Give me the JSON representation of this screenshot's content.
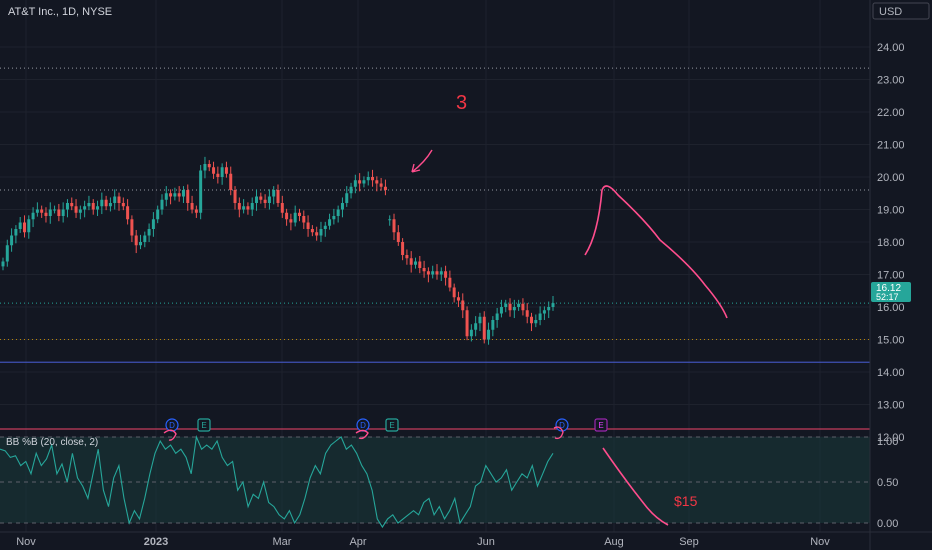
{
  "header": {
    "symbol_title": "AT&T Inc., 1D, NYSE",
    "currency_button": "USD"
  },
  "price_badge": {
    "price": "16.12",
    "countdown": "52:17"
  },
  "indicator": {
    "label": "BB %B (20, close, 2)"
  },
  "annotations": {
    "number": "3",
    "target": "$15"
  },
  "colors": {
    "background": "#131722",
    "up": "#26a69a",
    "down": "#ef5350",
    "drawing": "#ff4d8d",
    "support_line": "#3f51b5",
    "bb_line": "#26a69a",
    "bb_band": "#1b3b3b"
  },
  "chart_data": [
    {
      "type": "candlestick",
      "title": "AT&T Inc., 1D, NYSE",
      "x_tick_labels": [
        "Nov",
        "2023",
        "Mar",
        "Apr",
        "Jun",
        "Aug",
        "Sep",
        "Nov"
      ],
      "y_tick_labels": [
        "12.00",
        "13.00",
        "14.00",
        "15.00",
        "16.00",
        "17.00",
        "18.00",
        "19.00",
        "20.00",
        "21.00",
        "22.00",
        "23.00",
        "24.00"
      ],
      "ylim": [
        11.5,
        25.0
      ],
      "grid": true,
      "last_price": 16.12,
      "horizontal_levels": [
        {
          "value": 23.35,
          "style": "dotted"
        },
        {
          "value": 19.6,
          "style": "dotted"
        },
        {
          "value": 15.0,
          "style": "dotted"
        },
        {
          "value": 14.3,
          "style": "solid"
        }
      ],
      "event_markers": [
        "D",
        "E",
        "D",
        "E",
        "D",
        "E"
      ],
      "close_series": [
        17.4,
        17.9,
        18.2,
        18.4,
        18.6,
        18.3,
        18.7,
        18.9,
        19.0,
        18.9,
        18.8,
        19.0,
        19.0,
        18.8,
        19.0,
        19.2,
        19.1,
        18.9,
        19.0,
        19.1,
        19.2,
        19.0,
        19.1,
        19.3,
        19.1,
        19.2,
        19.4,
        19.2,
        19.1,
        18.7,
        18.2,
        17.9,
        18.0,
        18.2,
        18.4,
        18.7,
        19.0,
        19.3,
        19.5,
        19.4,
        19.5,
        19.4,
        19.6,
        19.2,
        19.0,
        18.9,
        20.2,
        20.4,
        20.3,
        20.1,
        20.0,
        20.3,
        20.1,
        19.6,
        19.2,
        19.0,
        19.1,
        19.0,
        19.2,
        19.4,
        19.3,
        19.2,
        19.4,
        19.6,
        19.2,
        18.9,
        18.7,
        18.6,
        18.9,
        18.8,
        18.6,
        18.4,
        18.3,
        18.2,
        18.4,
        18.5,
        18.7,
        18.8,
        19.0,
        19.2,
        19.5,
        19.7,
        19.9,
        19.8,
        19.9,
        20.0,
        19.9,
        19.8,
        19.7,
        19.6,
        18.7,
        18.3,
        18.0,
        17.6,
        17.5,
        17.3,
        17.4,
        17.2,
        17.1,
        17.0,
        17.1,
        17.0,
        17.1,
        16.9,
        16.6,
        16.3,
        16.2,
        15.9,
        15.1,
        15.3,
        15.5,
        15.7,
        15.0,
        15.3,
        15.6,
        15.8,
        16.0,
        16.1,
        15.9,
        16.0,
        16.1,
        15.9,
        15.7,
        15.5,
        15.6,
        15.8,
        15.9,
        16.0,
        16.12
      ]
    },
    {
      "type": "line",
      "series": [
        {
          "name": "BB %B (20, close, 2)"
        }
      ],
      "y_tick_labels": [
        "0.00",
        "0.50",
        "1.00"
      ],
      "ylim": [
        -0.1,
        1.15
      ],
      "values": [
        0.9,
        0.88,
        0.8,
        0.82,
        0.7,
        0.75,
        0.6,
        0.85,
        0.7,
        0.78,
        0.95,
        0.6,
        0.72,
        0.5,
        0.85,
        0.55,
        0.45,
        0.3,
        0.6,
        0.9,
        0.4,
        0.2,
        0.55,
        0.7,
        0.3,
        0.0,
        0.15,
        0.05,
        0.3,
        0.6,
        0.85,
        1.0,
        0.9,
        0.95,
        0.85,
        0.9,
        0.8,
        0.6,
        1.05,
        0.9,
        0.95,
        0.9,
        1.0,
        0.8,
        0.7,
        0.75,
        0.4,
        0.5,
        0.2,
        0.35,
        0.3,
        0.5,
        0.25,
        0.2,
        0.1,
        0.05,
        0.15,
        0.0,
        0.1,
        0.3,
        0.55,
        0.7,
        0.6,
        0.85,
        0.95,
        1.0,
        1.05,
        0.9,
        0.95,
        0.85,
        0.7,
        0.6,
        0.4,
        0.05,
        -0.05,
        0.05,
        0.1,
        0.0,
        0.05,
        0.1,
        0.15,
        0.1,
        0.25,
        0.3,
        0.1,
        0.2,
        0.05,
        0.15,
        0.3,
        0.0,
        0.1,
        0.2,
        0.45,
        0.5,
        0.7,
        0.6,
        0.5,
        0.55,
        0.65,
        0.4,
        0.5,
        0.6,
        0.55,
        0.7,
        0.45,
        0.6,
        0.75,
        0.85
      ]
    }
  ]
}
